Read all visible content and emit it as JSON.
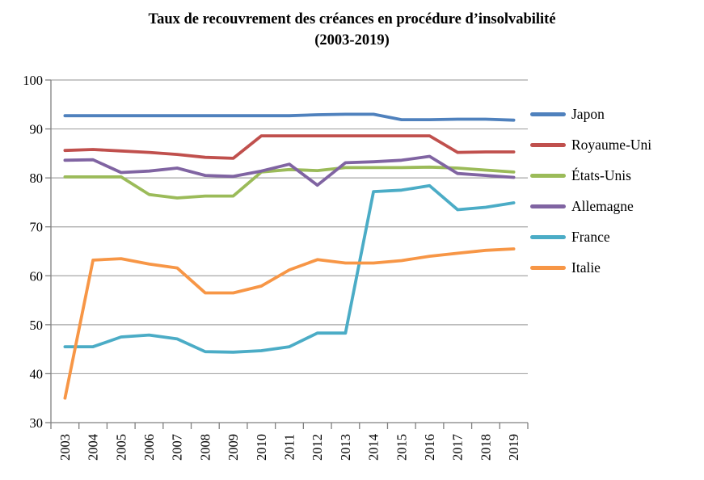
{
  "chart": {
    "title_line1": "Taux de recouvrement des créances en procédure d’insolvabilité",
    "title_line2": "(2003-2019)"
  },
  "chart_data": {
    "type": "line",
    "title": "Taux de recouvrement des créances en procédure d’insolvabilité (2003-2019)",
    "x": [
      "2003",
      "2004",
      "2005",
      "2006",
      "2007",
      "2008",
      "2009",
      "2010",
      "2011",
      "2012",
      "2013",
      "2014",
      "2015",
      "2016",
      "2017",
      "2018",
      "2019"
    ],
    "series": [
      {
        "name": "Japon",
        "color": "#4F81BD",
        "values": [
          92.7,
          92.7,
          92.7,
          92.7,
          92.7,
          92.7,
          92.7,
          92.7,
          92.7,
          92.9,
          93.0,
          93.0,
          91.9,
          91.9,
          92.0,
          92.0,
          91.8
        ]
      },
      {
        "name": "Royaume-Uni",
        "color": "#C0504D",
        "values": [
          85.6,
          85.8,
          85.5,
          85.2,
          84.8,
          84.2,
          84.0,
          88.6,
          88.6,
          88.6,
          88.6,
          88.6,
          88.6,
          88.6,
          85.2,
          85.3,
          85.3
        ]
      },
      {
        "name": "États-Unis",
        "color": "#9BBB59",
        "values": [
          80.2,
          80.2,
          80.2,
          76.6,
          75.9,
          76.3,
          76.3,
          81.2,
          81.7,
          81.5,
          82.1,
          82.1,
          82.1,
          82.2,
          82.0,
          81.6,
          81.2
        ]
      },
      {
        "name": "Allemagne",
        "color": "#8064A2",
        "values": [
          83.6,
          83.7,
          81.1,
          81.4,
          82.0,
          80.5,
          80.3,
          81.4,
          82.8,
          78.5,
          83.1,
          83.3,
          83.6,
          84.4,
          80.9,
          80.5,
          80.1
        ]
      },
      {
        "name": "France",
        "color": "#4BACC6",
        "values": [
          45.5,
          45.5,
          47.5,
          47.9,
          47.1,
          44.5,
          44.4,
          44.7,
          45.5,
          48.3,
          48.3,
          77.2,
          77.5,
          78.4,
          73.5,
          74.0,
          74.9
        ]
      },
      {
        "name": "Italie",
        "color": "#F79646",
        "values": [
          35.0,
          63.2,
          63.5,
          62.4,
          61.6,
          56.5,
          56.5,
          57.9,
          61.2,
          63.3,
          62.6,
          62.6,
          63.1,
          64.0,
          64.6,
          65.2,
          65.5
        ]
      }
    ],
    "ylim": [
      30,
      100
    ],
    "ytick_step": 10,
    "yticks": [
      30,
      40,
      50,
      60,
      70,
      80,
      90,
      100
    ],
    "grid": true,
    "legend_position": "right",
    "axis_color": "#808080",
    "grid_color": "#A6A6A6",
    "text_color": "#000000"
  }
}
